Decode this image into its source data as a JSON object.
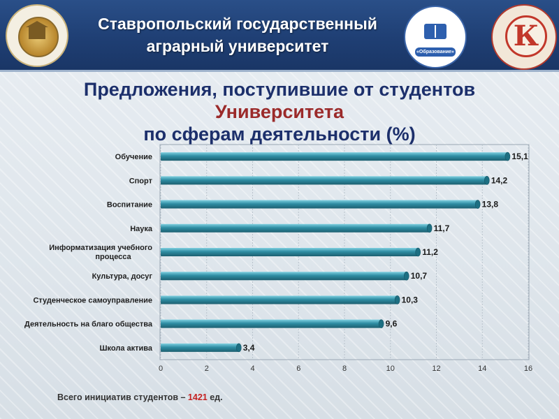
{
  "header": {
    "title_line1": "Ставропольский государственный",
    "title_line2": "аграрный университет"
  },
  "logos": {
    "left": "university-seal",
    "middle_ribbon": "«Образование»",
    "right_letter": "К"
  },
  "title": {
    "line1": "Предложения, поступившие от студентов",
    "line2": "Университета",
    "line3": "по сферам деятельности (%)"
  },
  "chart_data": {
    "type": "bar",
    "orientation": "horizontal",
    "categories": [
      "Обучение",
      "Спорт",
      "Воспитание",
      "Наука",
      "Информатизация учебного процесса",
      "Культура, досуг",
      "Студенческое самоуправление",
      "Деятельность на благо общества",
      "Школа актива"
    ],
    "values": [
      15.1,
      14.2,
      13.8,
      11.7,
      11.2,
      10.7,
      10.3,
      9.6,
      3.4
    ],
    "value_labels": [
      "15,1",
      "14,2",
      "13,8",
      "11,7",
      "11,2",
      "10,7",
      "10,3",
      "9,6",
      "3,4"
    ],
    "xlim": [
      0,
      16
    ],
    "xticks": [
      0,
      2,
      4,
      6,
      8,
      10,
      12,
      14,
      16
    ],
    "grid": true,
    "bar_color": "#2e8da3"
  },
  "footer": {
    "prefix": "Всего инициатив студентов – ",
    "count": "1421",
    "suffix": " ед."
  }
}
